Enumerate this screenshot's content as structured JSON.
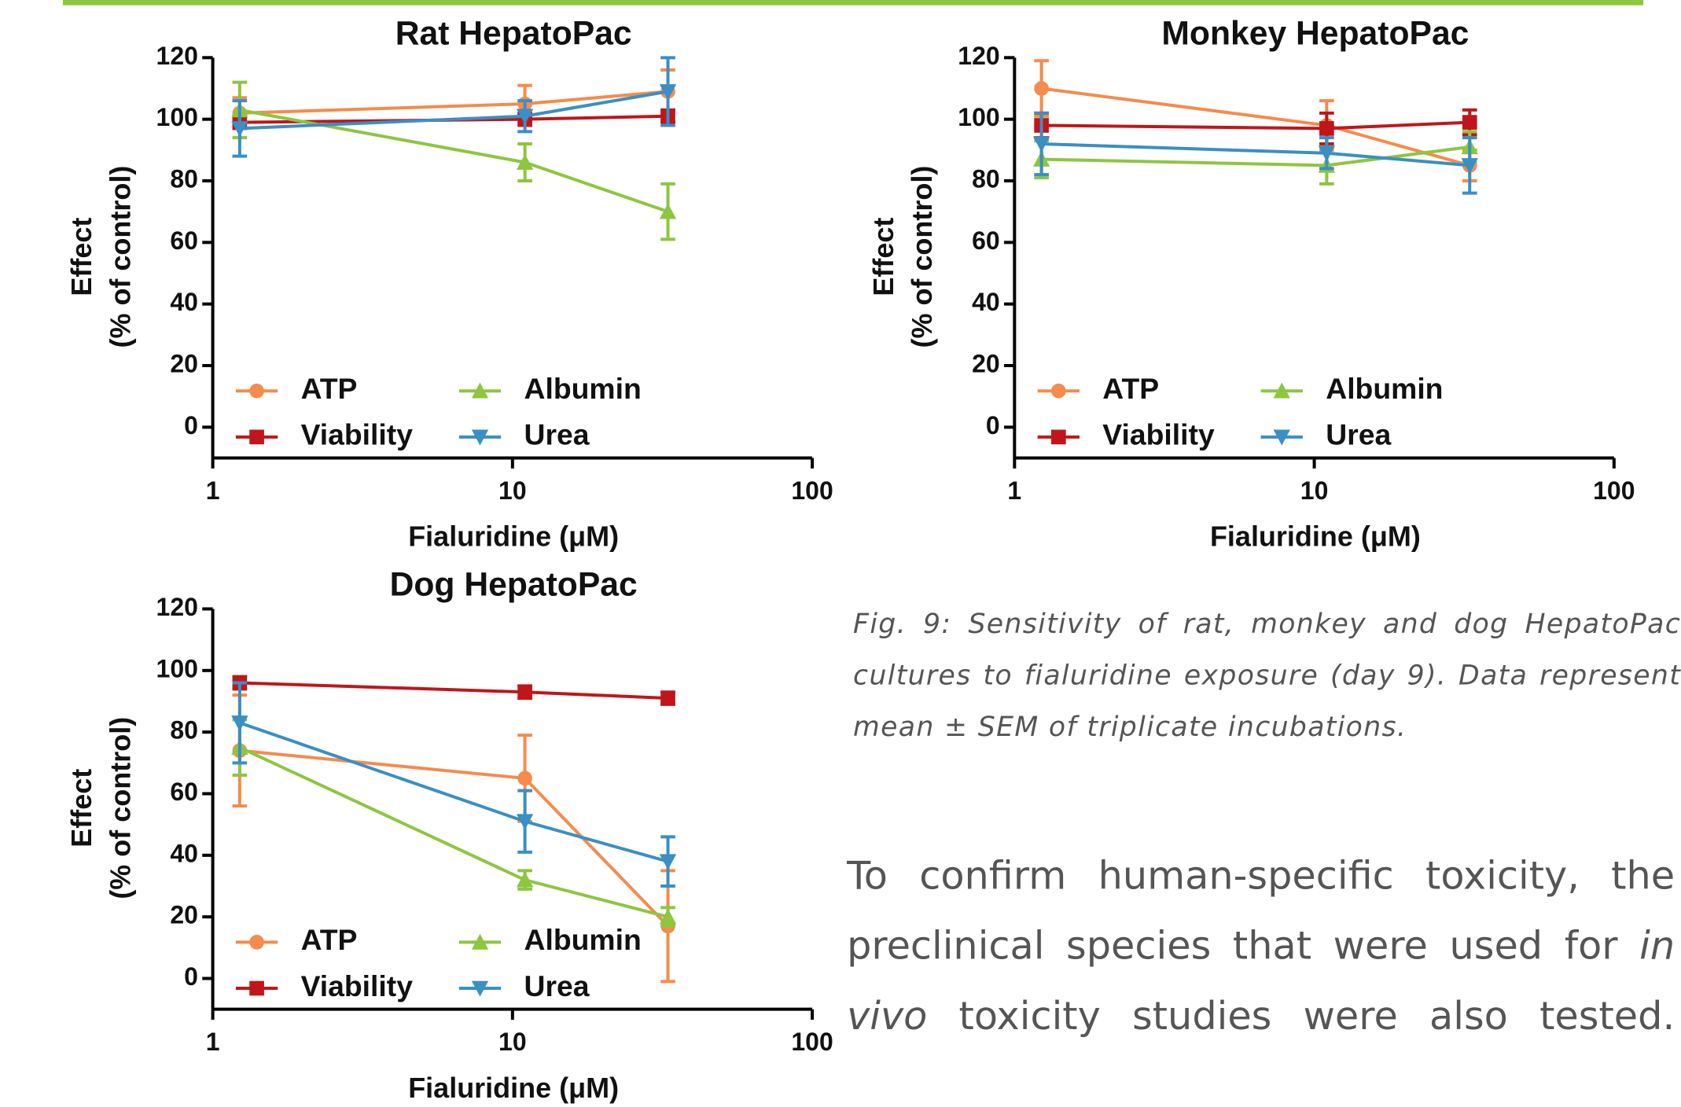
{
  "chart_data": [
    {
      "type": "line",
      "title": "Rat HepatoPac",
      "xlabel": "Fialuridine (μM)",
      "ylabel": [
        "Effect",
        "(% of control)"
      ],
      "x": [
        1.23,
        11,
        33
      ],
      "xlim": [
        1,
        100
      ],
      "xticks": [
        1,
        10,
        100
      ],
      "xscale": "log",
      "ylim": [
        -10,
        120
      ],
      "yticks": [
        0,
        20,
        40,
        60,
        80,
        100,
        120
      ],
      "series": [
        {
          "name": "ATP",
          "color": "#f58b4c",
          "marker": "circle",
          "values": [
            102,
            105,
            109
          ],
          "errors": [
            5,
            6,
            7
          ]
        },
        {
          "name": "Viability",
          "color": "#c0161b",
          "marker": "square",
          "values": [
            99,
            100,
            101
          ],
          "errors": [
            2,
            2,
            2
          ]
        },
        {
          "name": "Albumin",
          "color": "#8dc63f",
          "marker": "triangle-up",
          "values": [
            103,
            86,
            70
          ],
          "errors": [
            9,
            6,
            9
          ]
        },
        {
          "name": "Urea",
          "color": "#3a8fc4",
          "marker": "triangle-down",
          "values": [
            97,
            101,
            109
          ],
          "errors": [
            9,
            5,
            11
          ]
        }
      ]
    },
    {
      "type": "line",
      "title": "Monkey HepatoPac",
      "xlabel": "Fialuridine (μM)",
      "ylabel": [
        "Effect",
        "(% of control)"
      ],
      "x": [
        1.23,
        11,
        33
      ],
      "xlim": [
        1,
        100
      ],
      "xticks": [
        1,
        10,
        100
      ],
      "xscale": "log",
      "ylim": [
        -10,
        120
      ],
      "yticks": [
        0,
        20,
        40,
        60,
        80,
        100,
        120
      ],
      "series": [
        {
          "name": "ATP",
          "color": "#f58b4c",
          "marker": "circle",
          "values": [
            110,
            98,
            85
          ],
          "errors": [
            9,
            8,
            5
          ]
        },
        {
          "name": "Viability",
          "color": "#c0161b",
          "marker": "square",
          "values": [
            98,
            97,
            99
          ],
          "errors": [
            4,
            5,
            4
          ]
        },
        {
          "name": "Albumin",
          "color": "#8dc63f",
          "marker": "triangle-up",
          "values": [
            87,
            85,
            91
          ],
          "errors": [
            6,
            6,
            5
          ]
        },
        {
          "name": "Urea",
          "color": "#3a8fc4",
          "marker": "triangle-down",
          "values": [
            92,
            89,
            85
          ],
          "errors": [
            10,
            5,
            9
          ]
        }
      ]
    },
    {
      "type": "line",
      "title": "Dog HepatoPac",
      "xlabel": "Fialuridine (μM)",
      "ylabel": [
        "Effect",
        "(% of control)"
      ],
      "x": [
        1.23,
        11,
        33
      ],
      "xlim": [
        1,
        100
      ],
      "xticks": [
        1,
        10,
        100
      ],
      "xscale": "log",
      "ylim": [
        -10,
        120
      ],
      "yticks": [
        0,
        20,
        40,
        60,
        80,
        100,
        120
      ],
      "series": [
        {
          "name": "ATP",
          "color": "#f58b4c",
          "marker": "circle",
          "values": [
            74,
            65,
            17
          ],
          "errors": [
            18,
            14,
            18
          ]
        },
        {
          "name": "Viability",
          "color": "#c0161b",
          "marker": "square",
          "values": [
            96,
            93,
            91
          ],
          "errors": [
            2,
            2,
            2
          ]
        },
        {
          "name": "Albumin",
          "color": "#8dc63f",
          "marker": "triangle-up",
          "values": [
            75,
            32,
            20
          ],
          "errors": [
            9,
            3,
            3
          ]
        },
        {
          "name": "Urea",
          "color": "#3a8fc4",
          "marker": "triangle-down",
          "values": [
            83,
            51,
            38
          ],
          "errors": [
            13,
            10,
            8
          ]
        }
      ]
    }
  ],
  "document": {
    "caption": "Fig. 9: Sensitivity of rat, monkey and dog HepatoPac cultures to fialuridine exposure (day 9). Data represent mean ± SEM of triplicate incubations.",
    "paragraph": [
      "To confirm human-specific toxicity, the preclinical species that were used for ",
      "in vivo",
      " toxicity studies were also tested."
    ]
  }
}
